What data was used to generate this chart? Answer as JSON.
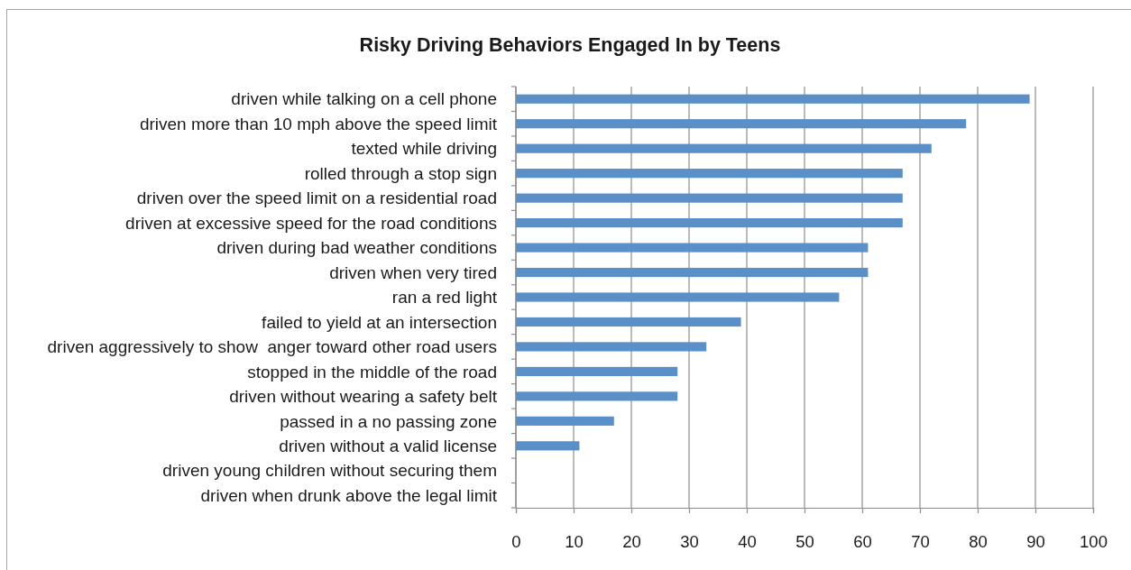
{
  "chart_data": {
    "type": "bar",
    "orientation": "horizontal",
    "title": "Risky Driving Behaviors Engaged In by Teens",
    "categories": [
      "driven while talking on a cell phone",
      "driven more than 10 mph above the speed limit",
      "texted while driving",
      "rolled through a stop sign",
      "driven over the speed limit on a residential road",
      "driven at excessive speed for the road conditions",
      "driven during bad weather conditions",
      "driven when very tired",
      "ran a red light",
      "failed to yield at an intersection",
      "driven aggressively to show  anger toward other road users",
      "stopped in the middle of the road",
      "driven without wearing a safety belt",
      "passed in a no passing zone",
      "driven without a valid license",
      "driven young children without securing them",
      "driven when drunk above the legal limit"
    ],
    "values": [
      89,
      78,
      72,
      67,
      67,
      67,
      61,
      61,
      56,
      39,
      33,
      28,
      28,
      17,
      11,
      0,
      0
    ],
    "color": "#5b8fc7",
    "xlim": [
      0,
      100
    ],
    "xticks": [
      0,
      10,
      20,
      30,
      40,
      50,
      60,
      70,
      80,
      90,
      100
    ],
    "grid": "x"
  }
}
